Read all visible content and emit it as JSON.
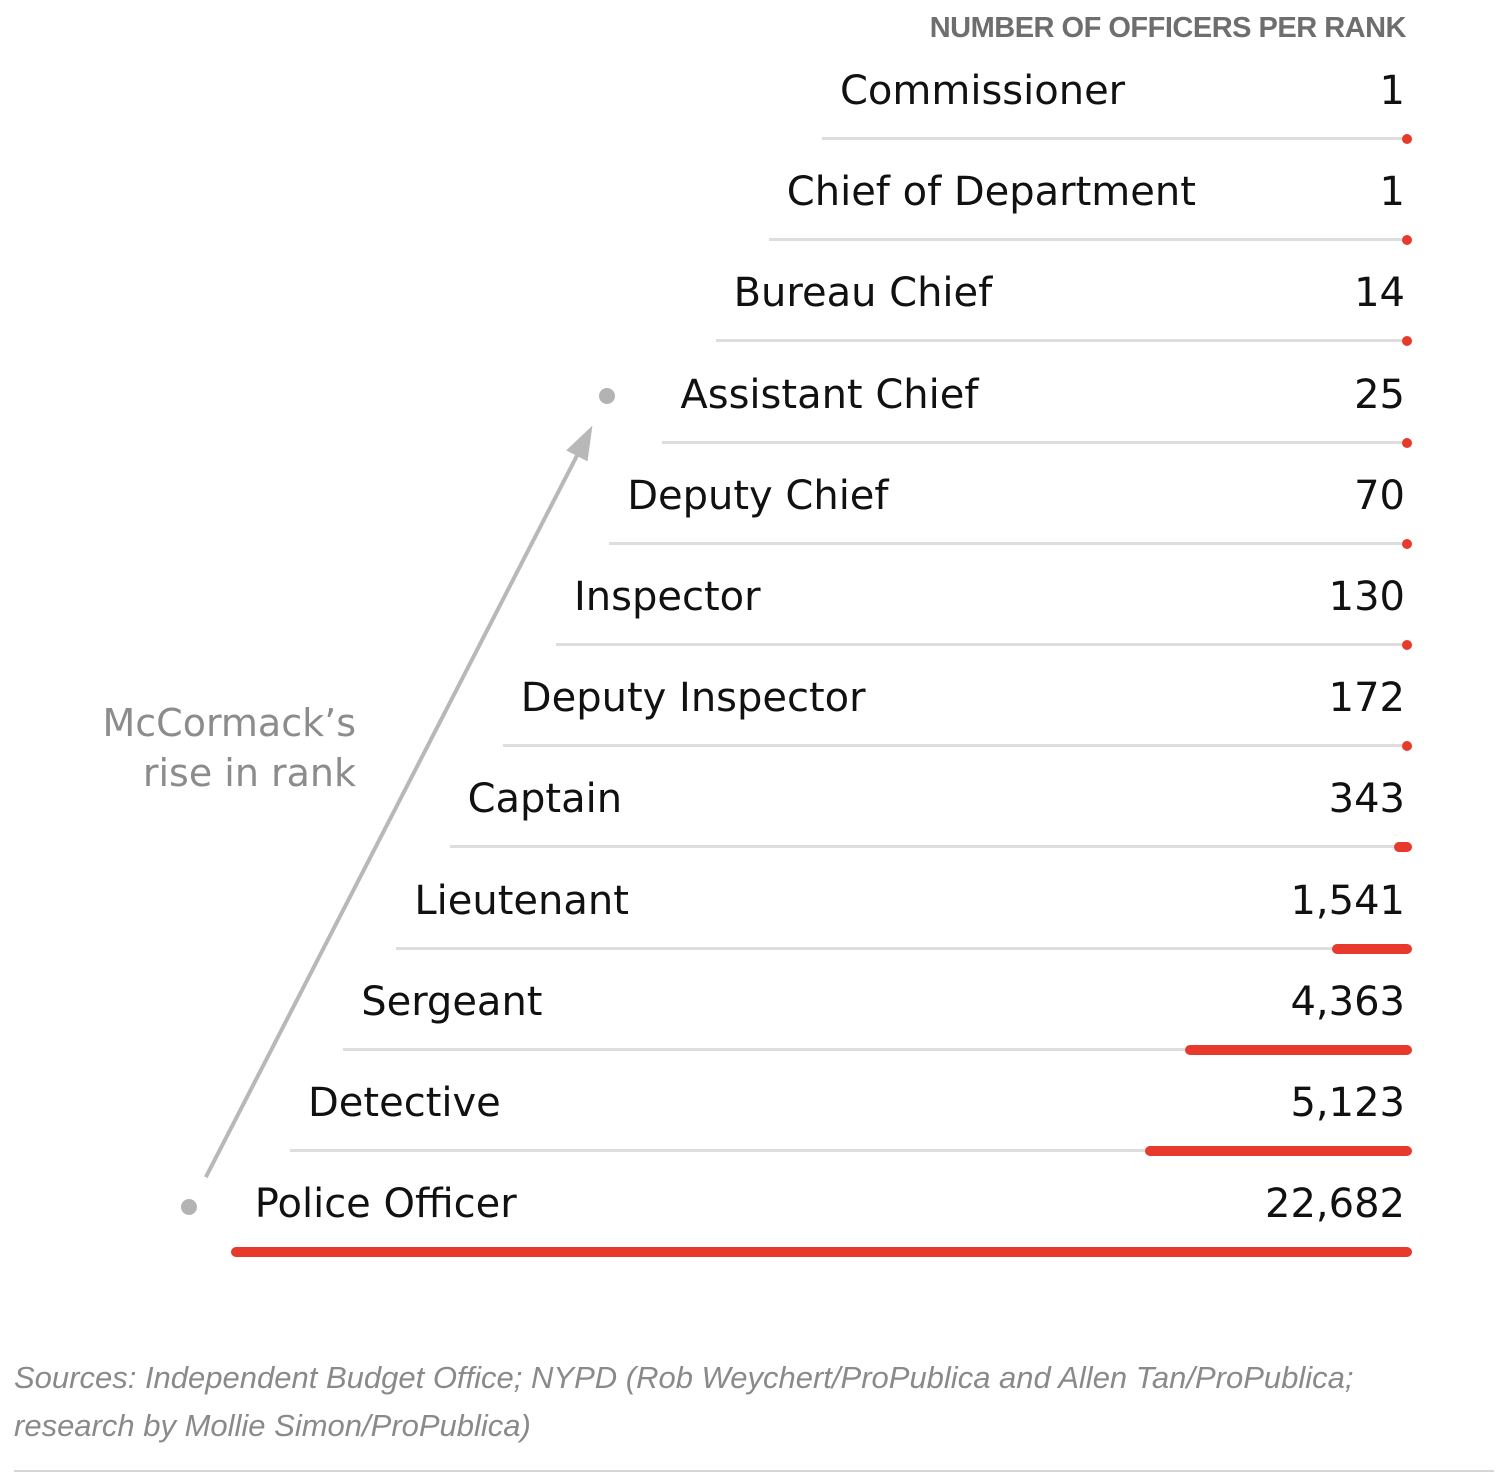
{
  "chart_data": {
    "type": "bar",
    "title": "NUMBER OF OFFICERS PER RANK",
    "categories": [
      "Commissioner",
      "Chief of Department",
      "Bureau Chief",
      "Assistant Chief",
      "Deputy Chief",
      "Inspector",
      "Deputy Inspector",
      "Captain",
      "Lieutenant",
      "Sergeant",
      "Detective",
      "Police Officer"
    ],
    "values": [
      1,
      1,
      14,
      25,
      70,
      130,
      172,
      343,
      1541,
      4363,
      5123,
      22682
    ],
    "value_labels": [
      "1",
      "1",
      "14",
      "25",
      "70",
      "130",
      "172",
      "343",
      "1,541",
      "4,363",
      "5,123",
      "22,682"
    ],
    "orientation": "horizontal",
    "bar_color": "#e8392d",
    "annotation": {
      "lines": [
        "McCormack’s",
        "rise in rank"
      ],
      "from": "Police Officer",
      "to": "Assistant Chief"
    }
  },
  "source": {
    "line1": "Sources: Independent Budget Office; NYPD (Rob Weychert/ProPublica and Allen Tan/ProPublica;",
    "line2": "research by Mollie Simon/ProPublica)"
  }
}
